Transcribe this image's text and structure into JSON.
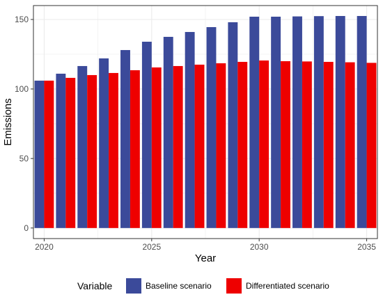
{
  "chart_data": {
    "type": "bar",
    "x": [
      2020,
      2021,
      2022,
      2023,
      2024,
      2025,
      2026,
      2027,
      2028,
      2029,
      2030,
      2031,
      2032,
      2033,
      2034,
      2035
    ],
    "series": [
      {
        "name": "Baseline scenario",
        "color": "#3b4a9a",
        "values": [
          106,
          111,
          116.5,
          122,
          128,
          134,
          137.5,
          141,
          144.5,
          148,
          152,
          152,
          152.2,
          152.4,
          152.5,
          152.5
        ]
      },
      {
        "name": "Differentiated scenario",
        "color": "#ee0000",
        "values": [
          106,
          108,
          110,
          111.5,
          113.5,
          115.5,
          116.5,
          117.5,
          118.5,
          119.5,
          120.5,
          120,
          119.8,
          119.5,
          119.2,
          118.8
        ]
      }
    ],
    "xticks": [
      "2020",
      "2025",
      "2030",
      "2035"
    ],
    "yticks": [
      0,
      50,
      100,
      150
    ],
    "xlim": [
      2019.5,
      2035.5
    ],
    "ylim": [
      -7.6,
      160
    ],
    "xlabel": "Year",
    "ylabel": "Emissions",
    "legend": {
      "title": "Variable",
      "position": "bottom"
    },
    "grid": true,
    "background": "#ffffff",
    "gridColor": "#ebebeb"
  }
}
